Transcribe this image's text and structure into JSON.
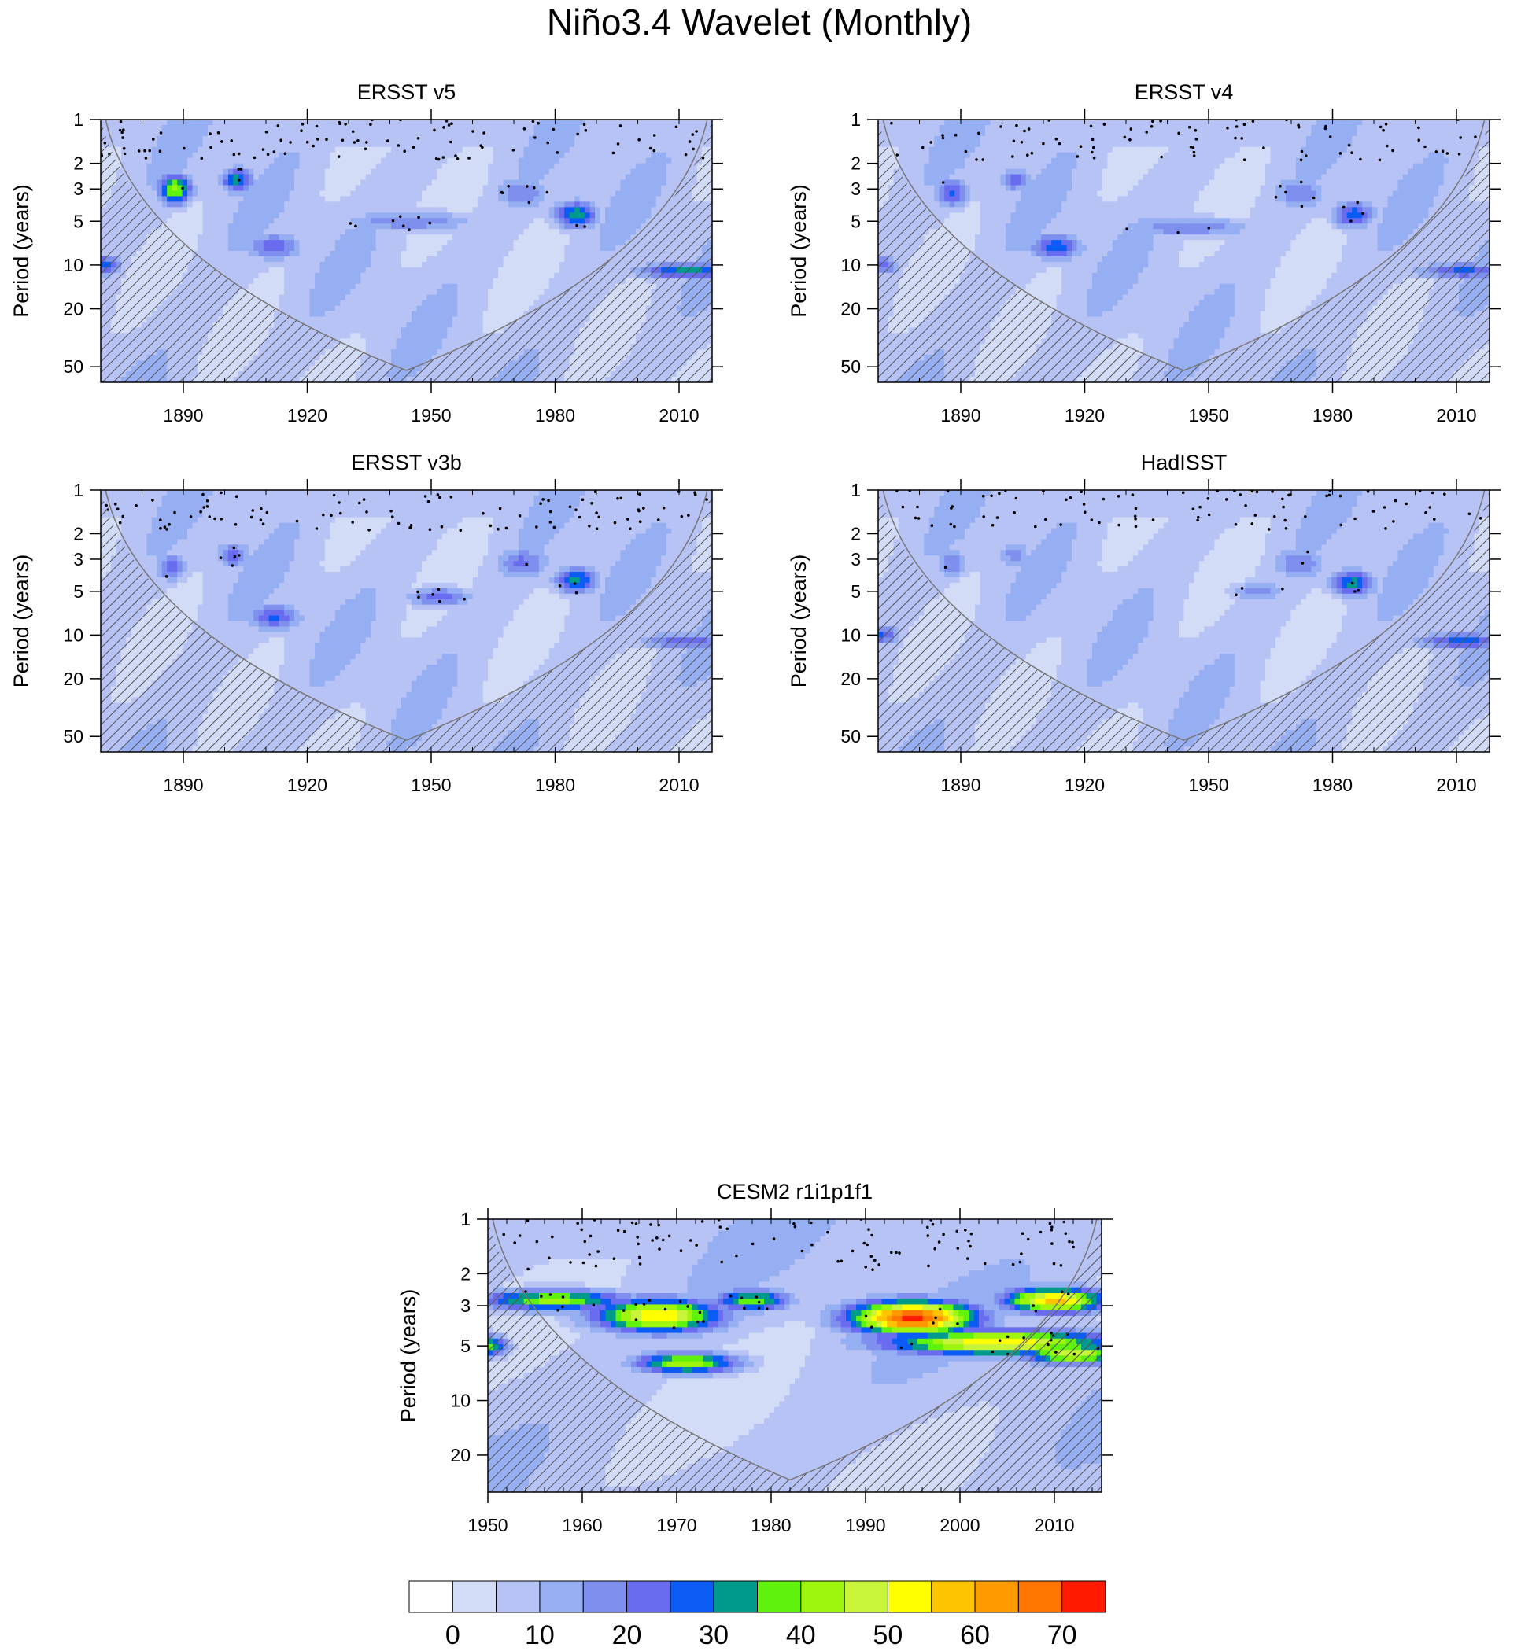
{
  "figure": {
    "title": "Niño3.4 Wavelet (Monthly)"
  },
  "chart_data": [
    {
      "type": "heatmap",
      "title": "ERSST v5",
      "xlabel": "",
      "ylabel": "Period (years)",
      "xlim": [
        1870,
        2018
      ],
      "ylim": [
        1,
        64
      ],
      "yscale": "log",
      "yreversed": true,
      "xticks": [
        1890,
        1920,
        1950,
        1980,
        2010
      ],
      "yticks": [
        1,
        2,
        3,
        5,
        10,
        20,
        50
      ],
      "coi_apex_year": 1944,
      "blobs": [
        {
          "x": 1888,
          "p": 3.0,
          "v": 42,
          "sx": 3,
          "sy": 0.18
        },
        {
          "x": 1903,
          "p": 2.6,
          "v": 32,
          "sx": 3,
          "sy": 0.15
        },
        {
          "x": 1912,
          "p": 7.5,
          "v": 24,
          "sx": 5,
          "sy": 0.16
        },
        {
          "x": 1985,
          "p": 4.5,
          "v": 34,
          "sx": 4,
          "sy": 0.16
        },
        {
          "x": 1871,
          "p": 10,
          "v": 28,
          "sx": 3,
          "sy": 0.12
        },
        {
          "x": 2012,
          "p": 11,
          "v": 32,
          "sx": 9,
          "sy": 0.1
        },
        {
          "x": 1945,
          "p": 5,
          "v": 20,
          "sx": 12,
          "sy": 0.12
        },
        {
          "x": 1972,
          "p": 3.2,
          "v": 20,
          "sx": 5,
          "sy": 0.2
        }
      ]
    },
    {
      "type": "heatmap",
      "title": "ERSST v4",
      "xlabel": "",
      "ylabel": "Period (years)",
      "xlim": [
        1870,
        2018
      ],
      "ylim": [
        1,
        64
      ],
      "yscale": "log",
      "yreversed": true,
      "xticks": [
        1890,
        1920,
        1950,
        1980,
        2010
      ],
      "yticks": [
        1,
        2,
        3,
        5,
        10,
        20,
        50
      ],
      "coi_apex_year": 1944,
      "blobs": [
        {
          "x": 1888,
          "p": 3.2,
          "v": 26,
          "sx": 3,
          "sy": 0.18
        },
        {
          "x": 1903,
          "p": 2.6,
          "v": 22,
          "sx": 3,
          "sy": 0.15
        },
        {
          "x": 1913,
          "p": 7.5,
          "v": 28,
          "sx": 5,
          "sy": 0.16
        },
        {
          "x": 1985,
          "p": 4.5,
          "v": 28,
          "sx": 4,
          "sy": 0.16
        },
        {
          "x": 1871,
          "p": 10,
          "v": 24,
          "sx": 3,
          "sy": 0.12
        },
        {
          "x": 2012,
          "p": 11,
          "v": 26,
          "sx": 9,
          "sy": 0.1
        },
        {
          "x": 1945,
          "p": 5.5,
          "v": 20,
          "sx": 12,
          "sy": 0.12
        },
        {
          "x": 1972,
          "p": 3.2,
          "v": 20,
          "sx": 5,
          "sy": 0.2
        }
      ]
    },
    {
      "type": "heatmap",
      "title": "ERSST v3b",
      "xlabel": "",
      "ylabel": "Period (years)",
      "xlim": [
        1870,
        2018
      ],
      "ylim": [
        1,
        64
      ],
      "yscale": "log",
      "yreversed": true,
      "xticks": [
        1890,
        1920,
        1950,
        1980,
        2010
      ],
      "yticks": [
        1,
        2,
        3,
        5,
        10,
        20,
        50
      ],
      "coi_apex_year": 1944,
      "blobs": [
        {
          "x": 1887,
          "p": 3.4,
          "v": 22,
          "sx": 3,
          "sy": 0.18
        },
        {
          "x": 1902,
          "p": 2.8,
          "v": 24,
          "sx": 3,
          "sy": 0.15
        },
        {
          "x": 1912,
          "p": 7.5,
          "v": 26,
          "sx": 5,
          "sy": 0.16
        },
        {
          "x": 1985,
          "p": 4.2,
          "v": 32,
          "sx": 4,
          "sy": 0.16
        },
        {
          "x": 2012,
          "p": 11,
          "v": 24,
          "sx": 9,
          "sy": 0.1
        },
        {
          "x": 1952,
          "p": 5.5,
          "v": 22,
          "sx": 6,
          "sy": 0.12
        },
        {
          "x": 1972,
          "p": 3.2,
          "v": 22,
          "sx": 5,
          "sy": 0.2
        }
      ]
    },
    {
      "type": "heatmap",
      "title": "HadISST",
      "xlabel": "",
      "ylabel": "Period (years)",
      "xlim": [
        1870,
        2018
      ],
      "ylim": [
        1,
        64
      ],
      "yscale": "log",
      "yreversed": true,
      "xticks": [
        1890,
        1920,
        1950,
        1980,
        2010
      ],
      "yticks": [
        1,
        2,
        3,
        5,
        10,
        20,
        50
      ],
      "coi_apex_year": 1944,
      "blobs": [
        {
          "x": 1888,
          "p": 3.2,
          "v": 20,
          "sx": 3,
          "sy": 0.18
        },
        {
          "x": 1903,
          "p": 2.8,
          "v": 18,
          "sx": 3,
          "sy": 0.15
        },
        {
          "x": 1985,
          "p": 4.4,
          "v": 32,
          "sx": 4,
          "sy": 0.16
        },
        {
          "x": 1871,
          "p": 10,
          "v": 26,
          "sx": 3,
          "sy": 0.12
        },
        {
          "x": 2012,
          "p": 11,
          "v": 28,
          "sx": 9,
          "sy": 0.1
        },
        {
          "x": 1962,
          "p": 5,
          "v": 18,
          "sx": 5,
          "sy": 0.12
        },
        {
          "x": 1972,
          "p": 3.2,
          "v": 20,
          "sx": 5,
          "sy": 0.2
        }
      ]
    },
    {
      "type": "heatmap",
      "title": "CESM2 r1i1p1f1",
      "xlabel": "",
      "ylabel": "Period (years)",
      "xlim": [
        1950,
        2015
      ],
      "ylim": [
        1,
        32
      ],
      "yscale": "log",
      "yreversed": true,
      "xticks": [
        1950,
        1960,
        1970,
        1980,
        1990,
        2000,
        2010
      ],
      "yticks": [
        1,
        2,
        3,
        5,
        10,
        20
      ],
      "coi_apex_year": 1982,
      "blobs": [
        {
          "x": 1995,
          "p": 3.5,
          "v": 72,
          "sx": 5,
          "sy": 0.16
        },
        {
          "x": 2004,
          "p": 4.8,
          "v": 55,
          "sx": 9,
          "sy": 0.12
        },
        {
          "x": 2010,
          "p": 2.8,
          "v": 58,
          "sx": 4,
          "sy": 0.12
        },
        {
          "x": 1968,
          "p": 3.4,
          "v": 55,
          "sx": 5,
          "sy": 0.16
        },
        {
          "x": 1971,
          "p": 6.2,
          "v": 45,
          "sx": 4,
          "sy": 0.1
        },
        {
          "x": 1957,
          "p": 2.8,
          "v": 42,
          "sx": 6,
          "sy": 0.1
        },
        {
          "x": 1950,
          "p": 5.0,
          "v": 40,
          "sx": 1.5,
          "sy": 0.1
        },
        {
          "x": 1978,
          "p": 2.8,
          "v": 40,
          "sx": 3,
          "sy": 0.1
        },
        {
          "x": 2012,
          "p": 5.5,
          "v": 50,
          "sx": 4,
          "sy": 0.1
        }
      ]
    }
  ],
  "colorbar": {
    "levels": [
      0,
      5,
      10,
      15,
      20,
      25,
      30,
      35,
      40,
      45,
      50,
      55,
      60,
      65,
      70
    ],
    "tick_labels": [
      "0",
      "10",
      "20",
      "30",
      "40",
      "50",
      "60",
      "70"
    ],
    "colors": [
      "#ffffff",
      "#d3dcf7",
      "#b7c3f4",
      "#96aef2",
      "#7f8fee",
      "#6a6cf0",
      "#0a5cf5",
      "#009a8c",
      "#5ef20d",
      "#9ef50d",
      "#c8f53a",
      "#ffff00",
      "#ffc400",
      "#ff9a00",
      "#ff7500",
      "#ff1a00"
    ]
  }
}
